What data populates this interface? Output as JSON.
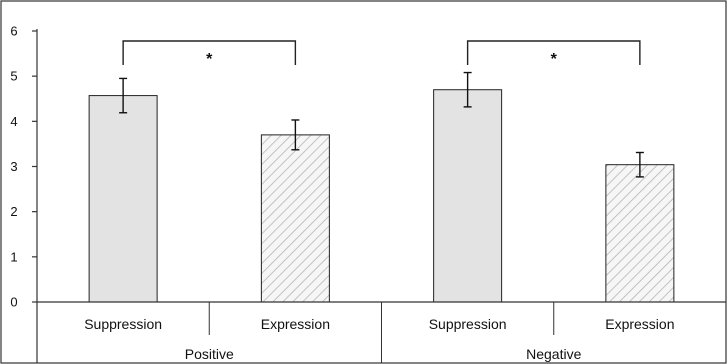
{
  "chart_data": {
    "type": "bar",
    "title": "",
    "xlabel": "",
    "ylabel": "",
    "ylim": [
      0,
      6
    ],
    "y_ticks": [
      0,
      1,
      2,
      3,
      4,
      5,
      6
    ],
    "grid": false,
    "legend": "none",
    "groups": [
      "Positive",
      "Negative"
    ],
    "categories": [
      "Suppression",
      "Expression",
      "Suppression",
      "Expression"
    ],
    "category_group": [
      "Positive",
      "Positive",
      "Negative",
      "Negative"
    ],
    "values": [
      4.57,
      3.7,
      4.7,
      3.04
    ],
    "error": [
      0.38,
      0.33,
      0.38,
      0.27
    ],
    "bar_styles": [
      "solid",
      "hatched",
      "solid",
      "hatched"
    ],
    "significance": [
      {
        "between": [
          0,
          1
        ],
        "label": "*"
      },
      {
        "between": [
          2,
          3
        ],
        "label": "*"
      }
    ],
    "colors": {
      "solid_fill": "#e3e3e3",
      "hatch_fill": "#f6f6f6",
      "hatch_stroke": "#b5b5b5",
      "outline": "#222222"
    }
  }
}
